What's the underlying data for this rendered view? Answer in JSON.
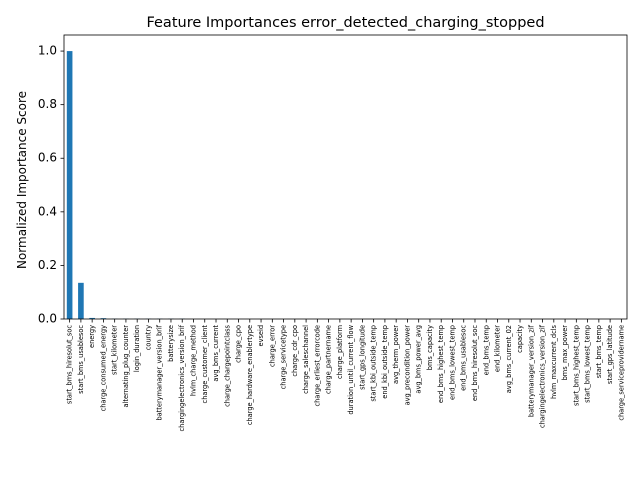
{
  "chart_data": {
    "type": "bar",
    "title": "Feature Importances error_detected_charging_stopped",
    "xlabel": "",
    "ylabel": "Normalized Importance Score",
    "ylim": [
      0,
      1.06
    ],
    "yticks": [
      "0.0",
      "0.2",
      "0.4",
      "0.6",
      "0.8",
      "1.0"
    ],
    "grid": false,
    "bar_color": "#1f77b4",
    "categories": [
      "start_bms_hiresolut_soc",
      "start_bms_usablesoc",
      "energy",
      "charge_consumed_energy",
      "start_kilometer",
      "alternating_plug_counter",
      "login_duration",
      "country",
      "batterymanager_version_brif",
      "batterysize",
      "chargingelectronics_version_brif",
      "hvlm_charge_method",
      "charge_customer_client",
      "avg_bms_current",
      "charge_chargepointclass",
      "charge_cpo",
      "charge_hardware_enablertype",
      "evseid",
      "charge_error",
      "charge_servicetype",
      "charge_cdr_cpo",
      "charge_saleschannel",
      "charge_erliest_errorcode",
      "charge_partnername",
      "charge_platform",
      "duration_until_current_flow",
      "start_gps_longitude",
      "start_kbi_outside_temp",
      "end_kbi_outside_temp",
      "avg_therm_power",
      "avg_precondition_power",
      "avg_bms_power_avg",
      "bms_capacity",
      "end_bms_highest_temp",
      "end_bms_lowest_temp",
      "end_bms_usablesoc",
      "end_bms_hiresolut_soc",
      "end_bms_temp",
      "end_kilometer",
      "avg_bms_current_02",
      "capacity",
      "batterymanager_version_zif",
      "chargingelectronics_version_zif",
      "hvlm_maxcurrent_dcls",
      "bms_max_power",
      "start_bms_highest_temp",
      "start_bms_lowest_temp",
      "start_bms_temp",
      "start_gps_latitude",
      "charge_serviceprovidername"
    ],
    "values": [
      1.0,
      0.135,
      0.004,
      0.003,
      0.001,
      0.001,
      0.001,
      0.001,
      0.001,
      0.001,
      0.001,
      0.0,
      0.0,
      0.0,
      0.0,
      0.0,
      0.0,
      0.0,
      0.0,
      0.0,
      0.0,
      0.0,
      0.0,
      0.0,
      0.0,
      0.0,
      0.0,
      0.0,
      0.0,
      0.0,
      0.0,
      0.0,
      0.0,
      0.0,
      0.0,
      0.0,
      0.0,
      0.0,
      0.0,
      0.0,
      0.0,
      0.0,
      0.0,
      0.0,
      0.0,
      0.0,
      0.0,
      0.0,
      0.0,
      0.0
    ]
  }
}
